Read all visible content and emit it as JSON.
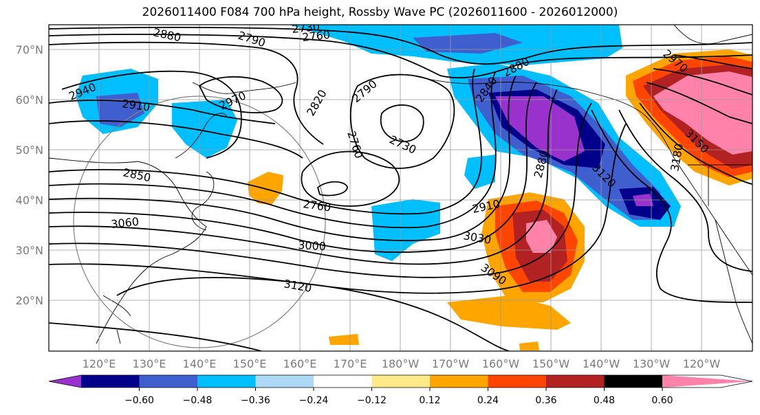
{
  "title": "2026011400 F084 700 hPa height, Rossby Wave PC (2026011600 - 2026012000)",
  "lat_labels": [
    "70°N",
    "60°N",
    "50°N",
    "40°N",
    "30°N",
    "20°N"
  ],
  "lon_labels": [
    "120°E",
    "130°E",
    "140°E",
    "150°E",
    "160°E",
    "170°E",
    "180°W",
    "170°W",
    "160°W",
    "150°W",
    "140°W",
    "130°W",
    "120°W"
  ],
  "contour_labels": [
    "2880",
    "2790",
    "2730",
    "2760",
    "2940",
    "2910",
    "2970",
    "2820",
    "2790",
    "2880",
    "2840",
    "2760",
    "2730",
    "2850",
    "2760",
    "3060",
    "2910",
    "3000",
    "3030",
    "3120",
    "3090",
    "3120",
    "2880",
    "2970",
    "3180",
    "3150"
  ],
  "colorbar": {
    "colors": [
      "#9932cc",
      "#00008b",
      "#3f5fcf",
      "#00bfff",
      "#add8f6",
      "#ffffff",
      "#ffe98a",
      "#ffa500",
      "#ff4500",
      "#b22222",
      "#ff82ab"
    ],
    "ticks": [
      "−0.60",
      "−0.48",
      "−0.36",
      "−0.24",
      "−0.12",
      "0.12",
      "0.24",
      "0.36",
      "0.48",
      "0.60"
    ]
  }
}
